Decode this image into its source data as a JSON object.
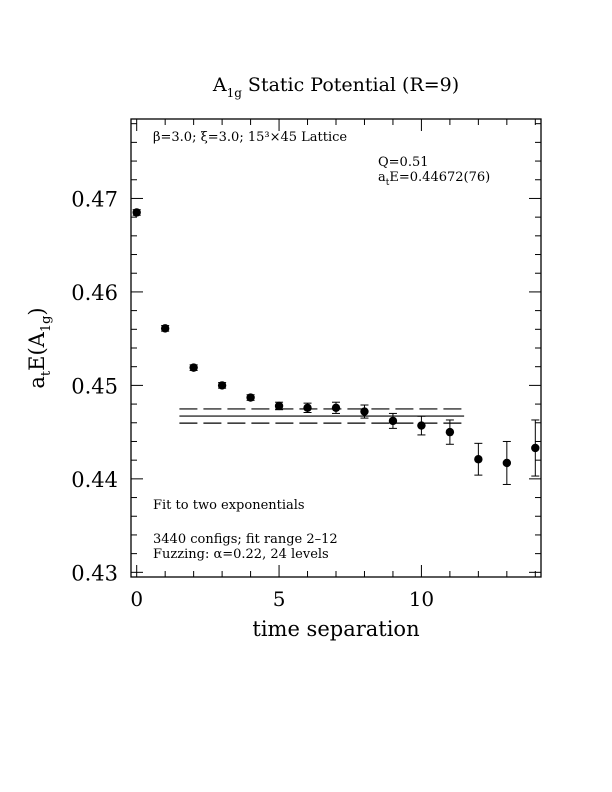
{
  "chart_data": {
    "type": "scatter",
    "title_main": "A",
    "title_sub": "1g",
    "title_rest": " Static Potential (R=9)",
    "xlabel": "time separation",
    "ylabel_a": "a",
    "ylabel_t": "t",
    "ylabel_e": "E(A",
    "ylabel_sub": "1g",
    "ylabel_close": ")",
    "xlim": [
      -0.2,
      14.2
    ],
    "ylim": [
      0.4295,
      0.4785
    ],
    "xticks": [
      0,
      5,
      10
    ],
    "xtick_labels": [
      "0",
      "5",
      "10"
    ],
    "yticks": [
      0.43,
      0.44,
      0.45,
      0.46,
      0.47
    ],
    "ytick_labels": [
      "0.43",
      "0.44",
      "0.45",
      "0.46",
      "0.47"
    ],
    "annotation_lattice": "β=3.0; ξ=3.0; 15³×45 Lattice",
    "annotation_q": "Q=0.51",
    "annotation_e_a": "a",
    "annotation_e_t": "t",
    "annotation_e_val": "E=0.44672(76)",
    "annotation_fit": "Fit to two exponentials",
    "annotation_configs": "3440 configs; fit range 2–12",
    "annotation_fuzzing": "Fuzzing: α=0.22, 24 levels",
    "series": [
      {
        "points": [
          {
            "x": 0,
            "y": 0.4685,
            "err": 0.0003
          },
          {
            "x": 1,
            "y": 0.4561,
            "err": 0.0003
          },
          {
            "x": 2,
            "y": 0.4519,
            "err": 0.0003
          },
          {
            "x": 3,
            "y": 0.45,
            "err": 0.0003
          },
          {
            "x": 4,
            "y": 0.4487,
            "err": 0.0003
          },
          {
            "x": 5,
            "y": 0.4478,
            "err": 0.0004
          },
          {
            "x": 6,
            "y": 0.4476,
            "err": 0.0005
          },
          {
            "x": 7,
            "y": 0.4476,
            "err": 0.0006
          },
          {
            "x": 8,
            "y": 0.4472,
            "err": 0.0007
          },
          {
            "x": 9,
            "y": 0.4462,
            "err": 0.0008
          },
          {
            "x": 10,
            "y": 0.4457,
            "err": 0.001
          },
          {
            "x": 11,
            "y": 0.445,
            "err": 0.0013
          },
          {
            "x": 12,
            "y": 0.4421,
            "err": 0.0017
          },
          {
            "x": 13,
            "y": 0.4417,
            "err": 0.0023
          },
          {
            "x": 14,
            "y": 0.4433,
            "err": 0.003
          }
        ]
      }
    ],
    "fit": {
      "x_start": 1.5,
      "x_end": 11.5,
      "central": 0.44672,
      "err": 0.00076
    }
  }
}
